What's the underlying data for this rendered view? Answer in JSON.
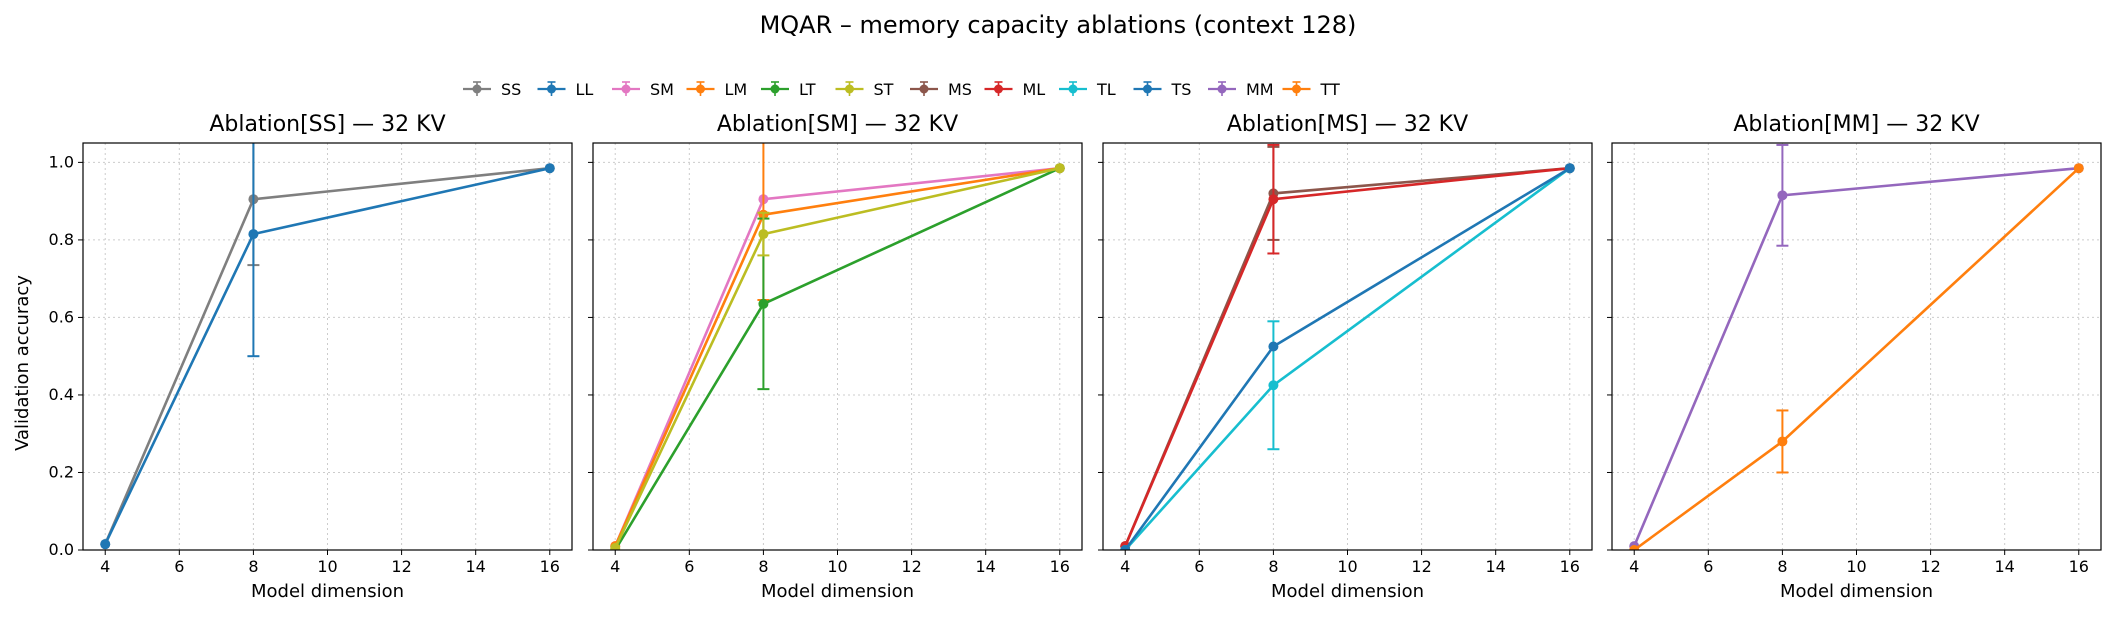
{
  "title": "MQAR – memory capacity ablations (context 128)",
  "ylabel": "Validation accuracy",
  "xlabel": "Model dimension",
  "legend": {
    "placement": "top-center",
    "entries": [
      {
        "name": "SS",
        "color": "#7f7f7f"
      },
      {
        "name": "LL",
        "color": "#1f77b4"
      },
      {
        "name": "SM",
        "color": "#e377c2"
      },
      {
        "name": "LM",
        "color": "#ff7f0e"
      },
      {
        "name": "LT",
        "color": "#2ca02c"
      },
      {
        "name": "ST",
        "color": "#bcbd22"
      },
      {
        "name": "MS",
        "color": "#8c564b"
      },
      {
        "name": "ML",
        "color": "#d62728"
      },
      {
        "name": "TL",
        "color": "#17becf"
      },
      {
        "name": "TS",
        "color": "#1f77b4"
      },
      {
        "name": "MM",
        "color": "#9467bd"
      },
      {
        "name": "TT",
        "color": "#ff7f0e"
      }
    ]
  },
  "chart_data": [
    {
      "type": "line",
      "title": "Ablation[SS] — 32 KV",
      "xlabel": "Model dimension",
      "ylabel": "Validation accuracy",
      "xlim": [
        3.4,
        16.6
      ],
      "ylim": [
        0,
        1.05
      ],
      "xticks": [
        4,
        6,
        8,
        10,
        12,
        14,
        16
      ],
      "yticks": [
        0.0,
        0.2,
        0.4,
        0.6,
        0.8,
        1.0
      ],
      "grid": true,
      "series": [
        {
          "name": "SS",
          "color": "#7f7f7f",
          "x": [
            4,
            8,
            16
          ],
          "y": [
            0.015,
            0.905,
            0.985
          ],
          "err": [
            0,
            0.17,
            0
          ]
        },
        {
          "name": "LL",
          "color": "#1f77b4",
          "x": [
            4,
            8,
            16
          ],
          "y": [
            0.015,
            0.815,
            0.985
          ],
          "err": [
            0,
            0.315,
            0
          ]
        }
      ]
    },
    {
      "type": "line",
      "title": "Ablation[SM] — 32 KV",
      "xlabel": "Model dimension",
      "ylabel": "",
      "xlim": [
        3.4,
        16.6
      ],
      "ylim": [
        0,
        1.05
      ],
      "xticks": [
        4,
        6,
        8,
        10,
        12,
        14,
        16
      ],
      "yticks": [
        0.0,
        0.2,
        0.4,
        0.6,
        0.8,
        1.0
      ],
      "grid": true,
      "series": [
        {
          "name": "SM",
          "color": "#e377c2",
          "x": [
            4,
            8,
            16
          ],
          "y": [
            0.01,
            0.905,
            0.985
          ],
          "err": [
            0,
            0,
            0
          ]
        },
        {
          "name": "LM",
          "color": "#ff7f0e",
          "x": [
            4,
            8,
            16
          ],
          "y": [
            0.01,
            0.865,
            0.985
          ],
          "err": [
            0,
            0.22,
            0
          ]
        },
        {
          "name": "LT",
          "color": "#2ca02c",
          "x": [
            4,
            8,
            16
          ],
          "y": [
            0.0,
            0.635,
            0.985
          ],
          "err": [
            0,
            0.22,
            0
          ]
        },
        {
          "name": "ST",
          "color": "#bcbd22",
          "x": [
            4,
            8,
            16
          ],
          "y": [
            0.005,
            0.815,
            0.985
          ],
          "err": [
            0,
            0.055,
            0
          ]
        }
      ]
    },
    {
      "type": "line",
      "title": "Ablation[MS] — 32 KV",
      "xlabel": "Model dimension",
      "ylabel": "",
      "xlim": [
        3.4,
        16.6
      ],
      "ylim": [
        0,
        1.05
      ],
      "xticks": [
        4,
        6,
        8,
        10,
        12,
        14,
        16
      ],
      "yticks": [
        0.0,
        0.2,
        0.4,
        0.6,
        0.8,
        1.0
      ],
      "grid": true,
      "series": [
        {
          "name": "MS",
          "color": "#8c564b",
          "x": [
            4,
            8,
            16
          ],
          "y": [
            0.01,
            0.92,
            0.985
          ],
          "err": [
            0,
            0.12,
            0
          ]
        },
        {
          "name": "ML",
          "color": "#d62728",
          "x": [
            4,
            8,
            16
          ],
          "y": [
            0.01,
            0.905,
            0.985
          ],
          "err": [
            0,
            0.14,
            0
          ]
        },
        {
          "name": "TL",
          "color": "#17becf",
          "x": [
            4,
            8,
            16
          ],
          "y": [
            0.0,
            0.425,
            0.985
          ],
          "err": [
            0,
            0.165,
            0
          ]
        },
        {
          "name": "TS",
          "color": "#1f77b4",
          "x": [
            4,
            8,
            16
          ],
          "y": [
            0.0,
            0.525,
            0.985
          ],
          "err": [
            0,
            0,
            0
          ]
        }
      ]
    },
    {
      "type": "line",
      "title": "Ablation[MM] — 32 KV",
      "xlabel": "Model dimension",
      "ylabel": "",
      "xlim": [
        3.4,
        16.6
      ],
      "ylim": [
        0,
        1.05
      ],
      "xticks": [
        4,
        6,
        8,
        10,
        12,
        14,
        16
      ],
      "yticks": [
        0.0,
        0.2,
        0.4,
        0.6,
        0.8,
        1.0
      ],
      "grid": true,
      "series": [
        {
          "name": "MM",
          "color": "#9467bd",
          "x": [
            4,
            8,
            16
          ],
          "y": [
            0.01,
            0.915,
            0.985
          ],
          "err": [
            0,
            0.13,
            0
          ]
        },
        {
          "name": "TT",
          "color": "#ff7f0e",
          "x": [
            4,
            8,
            16
          ],
          "y": [
            0.0,
            0.28,
            0.985
          ],
          "err": [
            0,
            0.08,
            0
          ]
        }
      ]
    }
  ]
}
